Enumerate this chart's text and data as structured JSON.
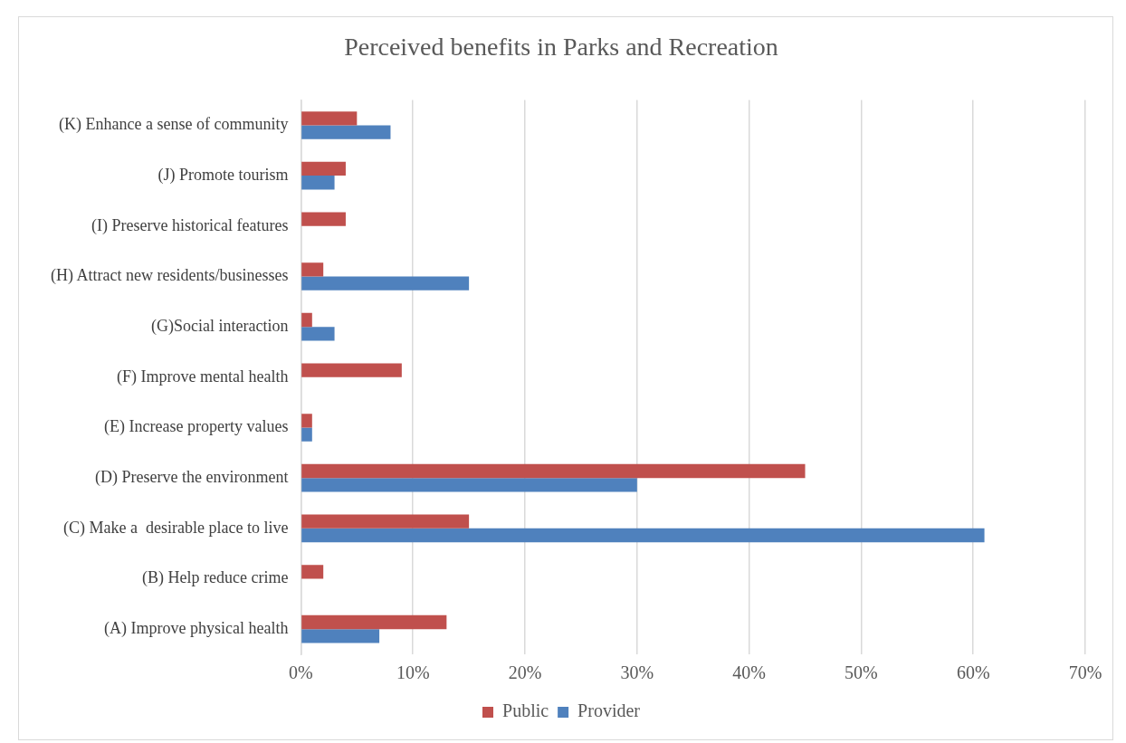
{
  "chart_data": {
    "type": "bar",
    "orientation": "horizontal",
    "title": "Perceived benefits in Parks and Recreation",
    "categories": [
      "(K) Enhance a sense of community",
      "(J) Promote tourism",
      "(I) Preserve historical features",
      "(H) Attract new residents/businesses",
      "(G)Social interaction",
      "(F) Improve mental health",
      "(E) Increase property values",
      "(D) Preserve the environment",
      "(C) Make a  desirable place to live",
      "(B) Help reduce crime",
      "(A) Improve physical health"
    ],
    "series": [
      {
        "name": "Public",
        "color": "#c0504d",
        "values": [
          5,
          4,
          4,
          2,
          1,
          9,
          1,
          45,
          15,
          2,
          13
        ]
      },
      {
        "name": "Provider",
        "color": "#4f81bd",
        "values": [
          8,
          3,
          0,
          15,
          3,
          0,
          1,
          30,
          61,
          0,
          7
        ]
      }
    ],
    "xlim": [
      0,
      70
    ],
    "xticks": [
      {
        "value": 0,
        "label": "0%"
      },
      {
        "value": 10,
        "label": "10%"
      },
      {
        "value": 20,
        "label": "20%"
      },
      {
        "value": 30,
        "label": "30%"
      },
      {
        "value": 40,
        "label": "40%"
      },
      {
        "value": 50,
        "label": "50%"
      },
      {
        "value": 60,
        "label": "60%"
      },
      {
        "value": 70,
        "label": "70%"
      }
    ],
    "grid": "x",
    "legend": "bottom"
  }
}
